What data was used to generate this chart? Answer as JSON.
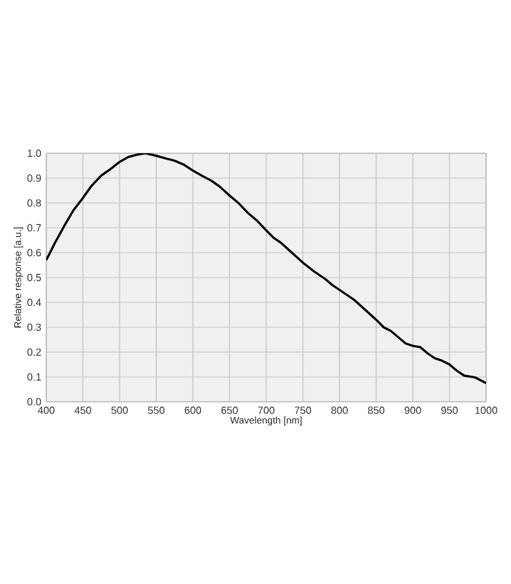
{
  "chart_data": {
    "type": "line",
    "xlabel": "Wavelength  [nm]",
    "ylabel": "Relative  response [a.u.]",
    "xlim": [
      400,
      1000
    ],
    "ylim": [
      0,
      1.0
    ],
    "xticks": [
      400,
      450,
      500,
      550,
      600,
      650,
      700,
      750,
      800,
      850,
      900,
      950,
      1000
    ],
    "yticks": [
      {
        "value": 0,
        "label": "0.0"
      },
      0.1,
      0.2,
      0.3,
      0.4,
      0.5,
      0.6,
      0.7,
      0.8,
      0.9,
      {
        "value": 1,
        "label": "1.0"
      }
    ],
    "grid": true,
    "marker": "none",
    "line_style": "solid",
    "series": [
      {
        "color": "#000000",
        "x": [
          400,
          412,
          425,
          437,
          450,
          462,
          475,
          487,
          500,
          512,
          525,
          535,
          550,
          562,
          575,
          587,
          600,
          612,
          625,
          637,
          650,
          662,
          675,
          687,
          700,
          710,
          720,
          735,
          750,
          765,
          780,
          790,
          800,
          810,
          820,
          835,
          850,
          860,
          870,
          880,
          890,
          900,
          910,
          920,
          930,
          940,
          950,
          960,
          970,
          985,
          1000
        ],
        "values": [
          0.57,
          0.64,
          0.71,
          0.77,
          0.82,
          0.87,
          0.91,
          0.935,
          0.965,
          0.985,
          0.995,
          1.0,
          0.99,
          0.98,
          0.97,
          0.955,
          0.93,
          0.91,
          0.89,
          0.865,
          0.83,
          0.8,
          0.76,
          0.73,
          0.69,
          0.66,
          0.64,
          0.6,
          0.56,
          0.525,
          0.495,
          0.47,
          0.45,
          0.43,
          0.41,
          0.37,
          0.33,
          0.3,
          0.285,
          0.26,
          0.235,
          0.225,
          0.22,
          0.195,
          0.175,
          0.165,
          0.15,
          0.125,
          0.105,
          0.098,
          0.075
        ]
      }
    ]
  }
}
